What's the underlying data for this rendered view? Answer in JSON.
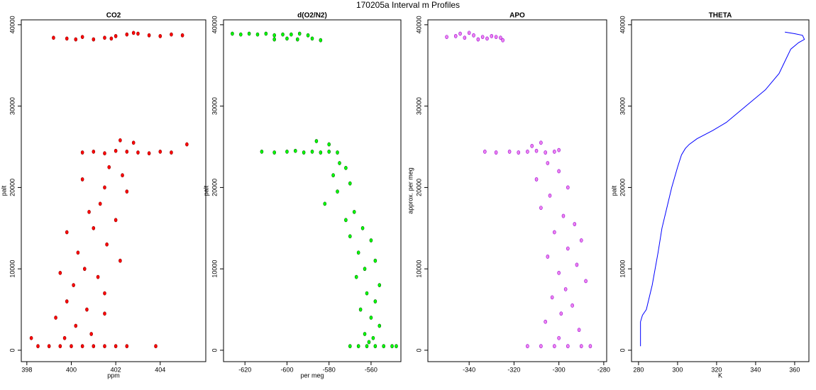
{
  "title": "170205a   Interval m Profiles",
  "chart_data": [
    {
      "type": "scatter",
      "title": "CO2",
      "xlabel": "ppm",
      "ylabel": "palt",
      "color": "#ff0000",
      "edge_color": "#8b0000",
      "xlim": [
        397.75,
        406.05
      ],
      "ylim": [
        -1400,
        40600
      ],
      "xticks": [
        398,
        400,
        402,
        404
      ],
      "yticks": [
        0,
        10000,
        20000,
        30000,
        40000
      ],
      "x": [
        399.2,
        399.8,
        400.5,
        401,
        401.5,
        402,
        402.5,
        403,
        403.5,
        404,
        404.5,
        405,
        402.8,
        401.8,
        400.2,
        400.5,
        401,
        401.5,
        402,
        402.5,
        403,
        403.5,
        404,
        404.5,
        405.2,
        402.8,
        402.2,
        401.7,
        402.3,
        400.5,
        401.5,
        402.5,
        401.3,
        400.8,
        402,
        401,
        399.8,
        401.6,
        400.3,
        402.2,
        400.6,
        399.5,
        401.2,
        400.1,
        401.5,
        399.8,
        400.7,
        401.5,
        399.3,
        400.2,
        400.9,
        399.7,
        398.5,
        399,
        399.5,
        400,
        400.5,
        401,
        401.5,
        402,
        402.5,
        403.8,
        398.2
      ],
      "values": [
        38400,
        38300,
        38500,
        38200,
        38400,
        38600,
        38800,
        38900,
        38700,
        38600,
        38800,
        38700,
        39000,
        38300,
        38200,
        24300,
        24400,
        24200,
        24500,
        24400,
        24300,
        24200,
        24400,
        24300,
        25300,
        25500,
        25800,
        22500,
        21500,
        21000,
        20000,
        19500,
        18000,
        17000,
        16000,
        15000,
        14500,
        13000,
        12000,
        11000,
        10000,
        9500,
        9000,
        8000,
        7000,
        6000,
        5000,
        4500,
        4000,
        3000,
        2000,
        1500,
        500,
        500,
        500,
        500,
        500,
        500,
        500,
        500,
        500,
        500,
        1500
      ]
    },
    {
      "type": "scatter",
      "title": "d(O2/N2)",
      "xlabel": "per meg",
      "ylabel": "palt",
      "color": "#00ff00",
      "edge_color": "#006400",
      "xlim": [
        -630.2,
        -545.8
      ],
      "ylim": [
        -1400,
        40600
      ],
      "xticks": [
        -620,
        -600,
        -580,
        -560
      ],
      "yticks": [
        0,
        10000,
        20000,
        30000,
        40000
      ],
      "x": [
        -626,
        -622,
        -618,
        -614,
        -610,
        -606,
        -602,
        -598,
        -594,
        -590,
        -606,
        -600,
        -595,
        -588,
        -584,
        -612,
        -606,
        -600,
        -596,
        -592,
        -588,
        -584,
        -580,
        -576,
        -586,
        -580,
        -575,
        -572,
        -578,
        -570,
        -576,
        -582,
        -568,
        -572,
        -564,
        -570,
        -560,
        -566,
        -558,
        -563,
        -567,
        -556,
        -562,
        -558,
        -565,
        -560,
        -556,
        -563,
        -559,
        -561,
        -570,
        -566,
        -562,
        -558,
        -554,
        -550,
        -548
      ],
      "values": [
        38900,
        38800,
        38900,
        38800,
        38900,
        38700,
        38800,
        38800,
        38900,
        38700,
        38200,
        38300,
        38200,
        38300,
        38100,
        24400,
        24300,
        24400,
        24500,
        24300,
        24400,
        24300,
        24400,
        24300,
        25700,
        25300,
        23000,
        22400,
        21500,
        20500,
        19500,
        18000,
        17000,
        16000,
        15000,
        14000,
        13500,
        12000,
        11000,
        10000,
        9000,
        8000,
        7000,
        6000,
        5000,
        4000,
        3000,
        2000,
        1500,
        1000,
        500,
        500,
        500,
        500,
        500,
        500,
        500
      ]
    },
    {
      "type": "scatter",
      "title": "APO",
      "xlabel": null,
      "ylabel": "approx. per meg",
      "color": "#ee82ee",
      "edge_color": "#9400d3",
      "xlim": [
        -358.4,
        -278.7
      ],
      "ylim": [
        -1400,
        40600
      ],
      "xticks": [
        -340,
        -320,
        -300,
        -280
      ],
      "yticks": [
        0,
        10000,
        20000,
        30000,
        40000
      ],
      "x": [
        -350,
        -346,
        -342,
        -338,
        -334,
        -330,
        -326,
        -344,
        -340,
        -336,
        -332,
        -328,
        -325,
        -333,
        -328,
        -322,
        -318,
        -314,
        -310,
        -306,
        -302,
        -300,
        -308,
        -312,
        -305,
        -300,
        -310,
        -296,
        -304,
        -308,
        -298,
        -293,
        -302,
        -290,
        -296,
        -305,
        -292,
        -300,
        -288,
        -297,
        -303,
        -294,
        -299,
        -306,
        -291,
        -300,
        -314,
        -308,
        -302,
        -296,
        -290,
        -286
      ],
      "values": [
        38500,
        38600,
        38400,
        38700,
        38500,
        38600,
        38400,
        38900,
        39000,
        38200,
        38300,
        38500,
        38100,
        24400,
        24300,
        24400,
        24300,
        24400,
        24500,
        24300,
        24400,
        24600,
        25500,
        25100,
        23000,
        22000,
        21000,
        20000,
        19000,
        17500,
        16500,
        15500,
        14500,
        13500,
        12500,
        11500,
        10500,
        9500,
        8500,
        7500,
        6500,
        5500,
        4500,
        3500,
        2500,
        1500,
        500,
        500,
        500,
        500,
        500,
        500
      ]
    },
    {
      "type": "line",
      "title": "THETA",
      "xlabel": "K",
      "ylabel": "palt",
      "color": "#0000ff",
      "xlim": [
        276.4,
        367.3
      ],
      "ylim": [
        -1400,
        40600
      ],
      "xticks": [
        280,
        300,
        320,
        340,
        360
      ],
      "yticks": [
        0,
        10000,
        20000,
        30000,
        40000
      ],
      "x": [
        281,
        281,
        282,
        284,
        287,
        290,
        292,
        294,
        297,
        300,
        302,
        304,
        306,
        310,
        318,
        325,
        335,
        345,
        352,
        355,
        358,
        362,
        365,
        364,
        360,
        355
      ],
      "values": [
        500,
        3500,
        4300,
        5000,
        8000,
        12000,
        15000,
        17000,
        20000,
        22500,
        24000,
        24800,
        25300,
        26000,
        27000,
        28000,
        30000,
        32000,
        34000,
        35500,
        37000,
        37800,
        38200,
        38700,
        38900,
        39100
      ]
    }
  ]
}
